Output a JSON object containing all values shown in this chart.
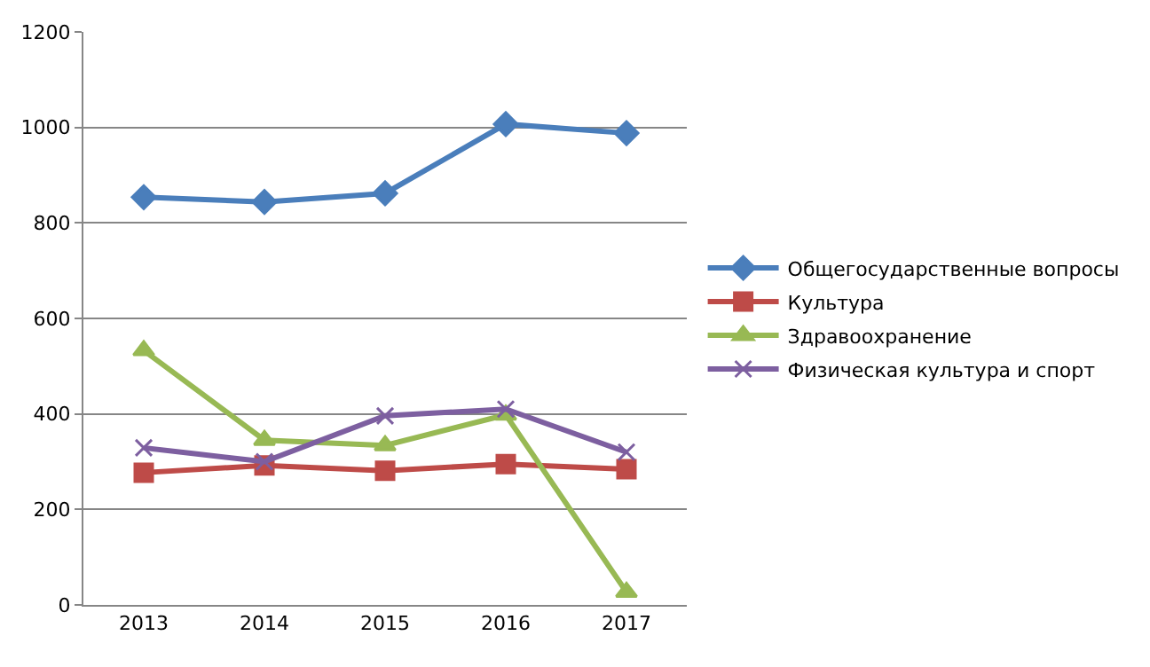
{
  "chart_data": {
    "type": "line",
    "categories": [
      "2013",
      "2014",
      "2015",
      "2016",
      "2017"
    ],
    "series": [
      {
        "name": "Общегосударственные вопросы",
        "color": "#4a7ebb",
        "marker": "diamond",
        "values": [
          854,
          844,
          862,
          1007,
          988
        ]
      },
      {
        "name": "Культура",
        "color": "#be4b48",
        "marker": "square",
        "values": [
          277,
          292,
          281,
          295,
          284
        ]
      },
      {
        "name": "Здравоохранение",
        "color": "#98b954",
        "marker": "triangle",
        "values": [
          533,
          345,
          334,
          398,
          27
        ]
      },
      {
        "name": "Физическая культура и спорт",
        "color": "#7d5fa0",
        "marker": "cross",
        "values": [
          329,
          300,
          396,
          410,
          320
        ]
      }
    ],
    "ylim": [
      0,
      1200
    ],
    "yticks": [
      0,
      200,
      400,
      600,
      800,
      1000,
      1200
    ],
    "grid": "y",
    "legend": "right",
    "line_style": "solid"
  }
}
